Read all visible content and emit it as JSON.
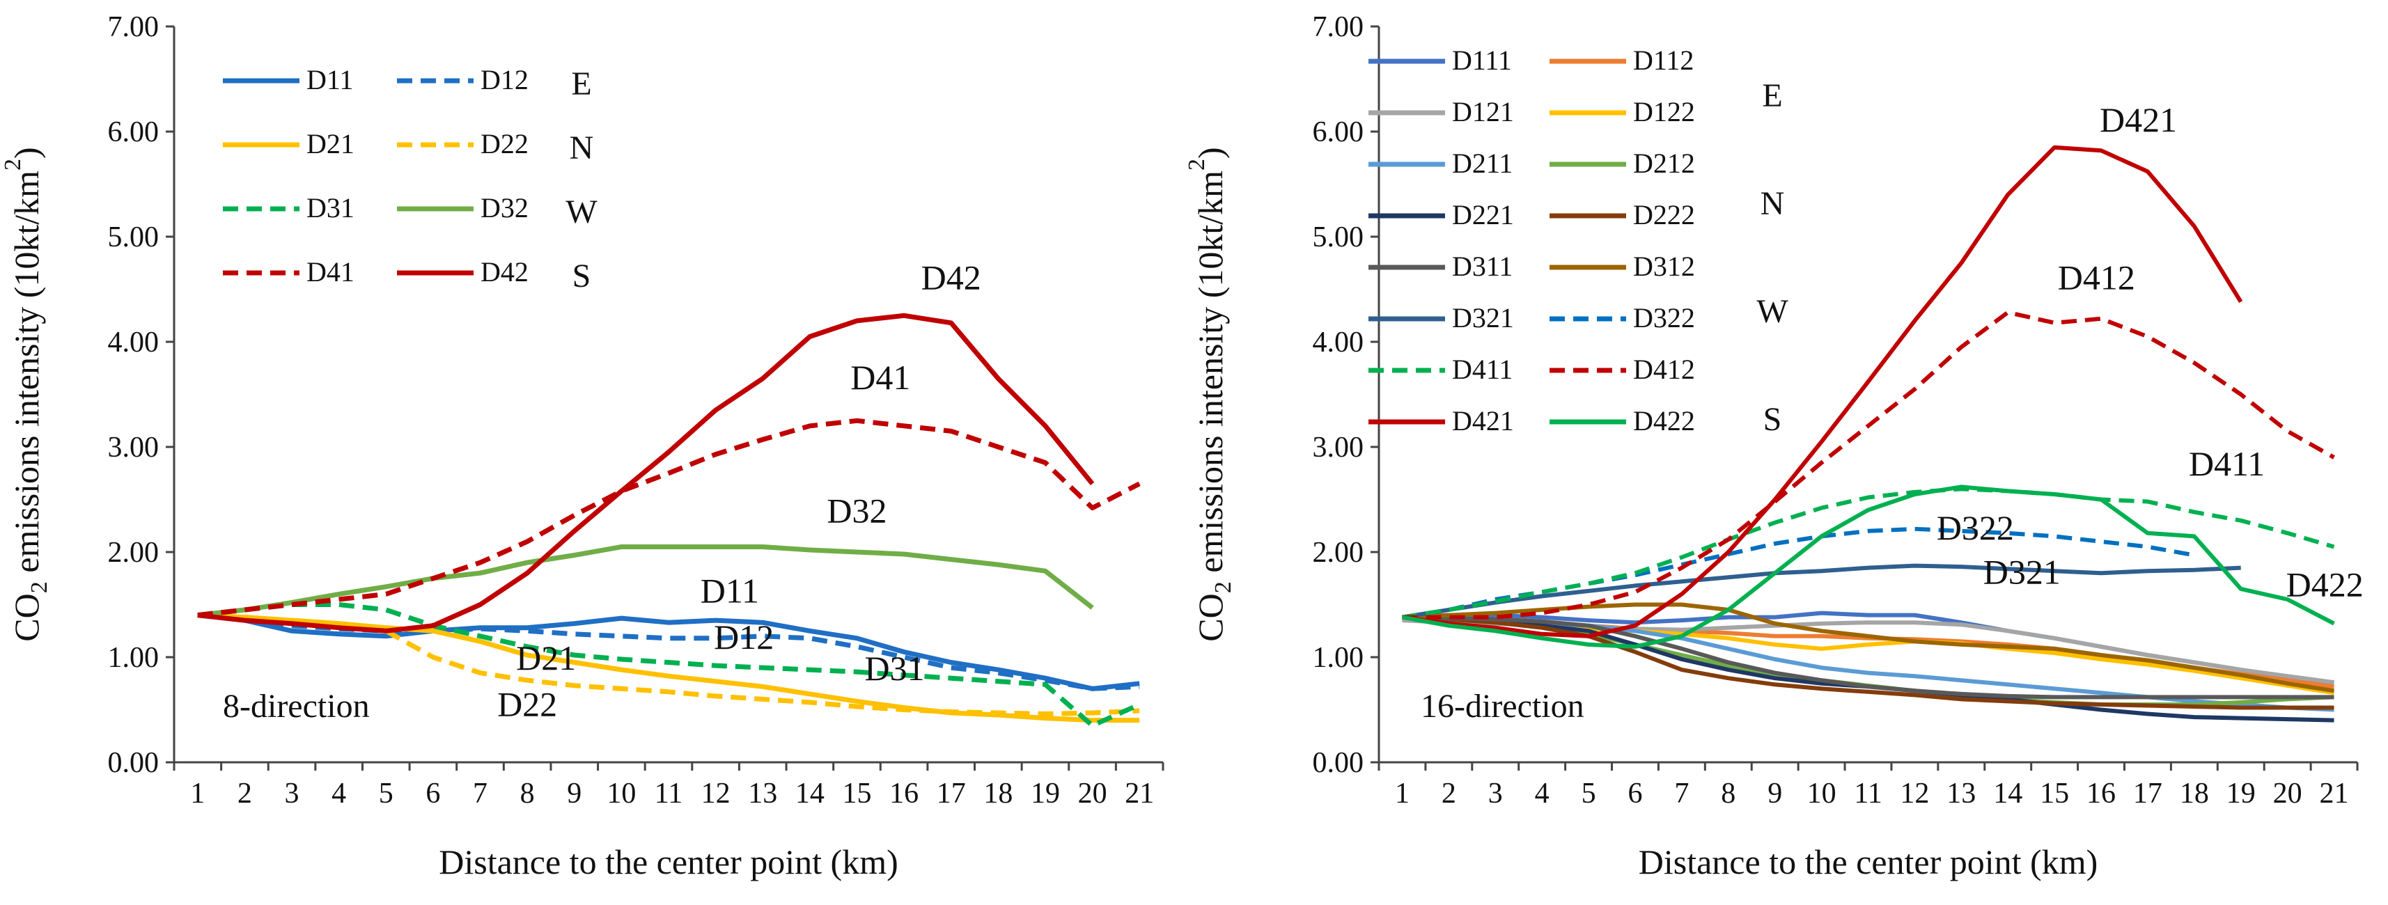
{
  "charts": [
    {
      "chart_data": {
        "type": "line",
        "title": "",
        "corner_label": "8-direction",
        "xlabel": "Distance to the center point (km)",
        "ylabel_pre": "CO",
        "ylabel_sub": "2",
        "ylabel_post": " emissions intensity (10kt/km",
        "ylabel_sup": "2",
        "ylabel_end": ")",
        "x": [
          1,
          2,
          3,
          4,
          5,
          6,
          7,
          8,
          9,
          10,
          11,
          12,
          13,
          14,
          15,
          16,
          17,
          18,
          19,
          20,
          21
        ],
        "ylim": [
          0,
          7
        ],
        "ytick_labels": [
          "0.00",
          "1.00",
          "2.00",
          "3.00",
          "4.00",
          "5.00",
          "6.00",
          "7.00"
        ],
        "xtick_labels": [
          "1",
          "2",
          "3",
          "4",
          "5",
          "6",
          "7",
          "8",
          "9",
          "10",
          "11",
          "12",
          "13",
          "14",
          "15",
          "16",
          "17",
          "18",
          "19",
          "20",
          "21"
        ],
        "legend": {
          "placement": "top-left",
          "columns": 2,
          "direction_labels": [
            "E",
            "N",
            "W",
            "S"
          ]
        },
        "series": [
          {
            "name": "D11",
            "color": "#1f6fc4",
            "dash": false,
            "values": [
              1.4,
              1.35,
              1.25,
              1.22,
              1.2,
              1.25,
              1.28,
              1.28,
              1.32,
              1.37,
              1.33,
              1.35,
              1.33,
              1.25,
              1.18,
              1.05,
              0.95,
              0.88,
              0.8,
              0.7,
              0.75
            ]
          },
          {
            "name": "D12",
            "color": "#1f6fc4",
            "dash": true,
            "values": [
              1.4,
              1.35,
              1.3,
              1.27,
              1.25,
              1.25,
              1.27,
              1.25,
              1.22,
              1.2,
              1.18,
              1.18,
              1.2,
              1.18,
              1.1,
              1.0,
              0.9,
              0.85,
              0.78,
              0.7,
              0.72
            ]
          },
          {
            "name": "D21",
            "color": "#ffc000",
            "dash": false,
            "values": [
              1.4,
              1.38,
              1.35,
              1.32,
              1.28,
              1.25,
              1.15,
              1.02,
              0.95,
              0.88,
              0.82,
              0.77,
              0.72,
              0.65,
              0.58,
              0.52,
              0.47,
              0.45,
              0.42,
              0.4,
              0.4
            ]
          },
          {
            "name": "D22",
            "color": "#ffc000",
            "dash": true,
            "values": [
              1.4,
              1.38,
              1.35,
              1.32,
              1.25,
              1.0,
              0.85,
              0.78,
              0.73,
              0.7,
              0.67,
              0.63,
              0.6,
              0.57,
              0.53,
              0.5,
              0.48,
              0.47,
              0.46,
              0.47,
              0.49
            ]
          },
          {
            "name": "D31",
            "color": "#00b050",
            "dash": true,
            "values": [
              1.4,
              1.45,
              1.5,
              1.5,
              1.45,
              1.3,
              1.2,
              1.1,
              1.02,
              0.98,
              0.95,
              0.92,
              0.9,
              0.88,
              0.86,
              0.83,
              0.8,
              0.77,
              0.74,
              0.35,
              0.55
            ]
          },
          {
            "name": "D32",
            "color": "#70ad47",
            "dash": false,
            "values": [
              1.4,
              1.45,
              1.52,
              1.6,
              1.67,
              1.75,
              1.8,
              1.9,
              1.97,
              2.05,
              2.05,
              2.05,
              2.05,
              2.02,
              2.0,
              1.98,
              1.93,
              1.88,
              1.82,
              1.47,
              null
            ]
          },
          {
            "name": "D41",
            "color": "#c00000",
            "dash": true,
            "values": [
              1.4,
              1.45,
              1.5,
              1.55,
              1.6,
              1.75,
              1.9,
              2.1,
              2.35,
              2.58,
              2.75,
              2.93,
              3.07,
              3.2,
              3.25,
              3.2,
              3.15,
              3.0,
              2.85,
              2.42,
              2.65
            ]
          },
          {
            "name": "D42",
            "color": "#c00000",
            "dash": false,
            "values": [
              1.4,
              1.35,
              1.32,
              1.28,
              1.25,
              1.3,
              1.5,
              1.8,
              2.2,
              2.58,
              2.95,
              3.35,
              3.65,
              4.05,
              4.2,
              4.25,
              4.18,
              3.65,
              3.2,
              2.65,
              null
            ]
          }
        ],
        "annotations": [
          {
            "text": "D42",
            "x": 17.0,
            "y": 4.5
          },
          {
            "text": "D41",
            "x": 15.5,
            "y": 3.55
          },
          {
            "text": "D32",
            "x": 15.0,
            "y": 2.28
          },
          {
            "text": "D11",
            "x": 12.3,
            "y": 1.52
          },
          {
            "text": "D12",
            "x": 12.6,
            "y": 1.08
          },
          {
            "text": "D21",
            "x": 8.4,
            "y": 0.88
          },
          {
            "text": "D31",
            "x": 15.8,
            "y": 0.78
          },
          {
            "text": "D22",
            "x": 8.0,
            "y": 0.44
          }
        ]
      }
    },
    {
      "chart_data": {
        "type": "line",
        "title": "",
        "corner_label": "16-direction",
        "xlabel": "Distance to the center point (km)",
        "ylabel_pre": "CO",
        "ylabel_sub": "2",
        "ylabel_post": " emissions intensity (10kt/km",
        "ylabel_sup": "2",
        "ylabel_end": ")",
        "x": [
          1,
          2,
          3,
          4,
          5,
          6,
          7,
          8,
          9,
          10,
          11,
          12,
          13,
          14,
          15,
          16,
          17,
          18,
          19,
          20,
          21
        ],
        "ylim": [
          0,
          7
        ],
        "ytick_labels": [
          "0.00",
          "1.00",
          "2.00",
          "3.00",
          "4.00",
          "5.00",
          "6.00",
          "7.00"
        ],
        "xtick_labels": [
          "1",
          "2",
          "3",
          "4",
          "5",
          "6",
          "7",
          "8",
          "9",
          "10",
          "11",
          "12",
          "13",
          "14",
          "15",
          "16",
          "17",
          "18",
          "19",
          "20",
          "21"
        ],
        "legend": {
          "placement": "top-left",
          "columns": 2,
          "direction_labels": [
            "E",
            "N",
            "W",
            "S"
          ]
        },
        "series": [
          {
            "name": "D111",
            "color": "#4472c4",
            "dash": false,
            "values": [
              1.38,
              1.4,
              1.4,
              1.38,
              1.35,
              1.33,
              1.35,
              1.38,
              1.38,
              1.42,
              1.4,
              1.4,
              1.33,
              1.25,
              1.18,
              1.1,
              1.02,
              0.95,
              0.88,
              0.8,
              0.76
            ]
          },
          {
            "name": "D112",
            "color": "#ed7d31",
            "dash": false,
            "values": [
              1.38,
              1.37,
              1.36,
              1.34,
              1.3,
              1.27,
              1.25,
              1.23,
              1.2,
              1.2,
              1.18,
              1.17,
              1.15,
              1.12,
              1.08,
              1.02,
              0.96,
              0.9,
              0.84,
              0.78,
              0.72
            ]
          },
          {
            "name": "D121",
            "color": "#a5a5a5",
            "dash": false,
            "values": [
              1.35,
              1.33,
              1.32,
              1.3,
              1.28,
              1.27,
              1.26,
              1.28,
              1.3,
              1.32,
              1.33,
              1.33,
              1.31,
              1.25,
              1.18,
              1.1,
              1.02,
              0.95,
              0.88,
              0.82,
              0.76
            ]
          },
          {
            "name": "D122",
            "color": "#ffc000",
            "dash": false,
            "values": [
              1.38,
              1.36,
              1.33,
              1.3,
              1.27,
              1.25,
              1.22,
              1.18,
              1.12,
              1.08,
              1.12,
              1.15,
              1.13,
              1.08,
              1.04,
              0.98,
              0.93,
              0.87,
              0.8,
              0.73,
              0.66
            ]
          },
          {
            "name": "D211",
            "color": "#5b9bd5",
            "dash": false,
            "values": [
              1.38,
              1.36,
              1.34,
              1.32,
              1.3,
              1.25,
              1.18,
              1.08,
              0.98,
              0.9,
              0.85,
              0.82,
              0.78,
              0.74,
              0.7,
              0.66,
              0.62,
              0.58,
              0.55,
              0.52,
              0.5
            ]
          },
          {
            "name": "D212",
            "color": "#70ad47",
            "dash": false,
            "values": [
              1.38,
              1.36,
              1.33,
              1.28,
              1.22,
              1.12,
              1.02,
              0.92,
              0.84,
              0.78,
              0.73,
              0.68,
              0.64,
              0.6,
              0.57,
              0.55,
              0.55,
              0.55,
              0.57,
              0.6,
              0.62
            ]
          },
          {
            "name": "D221",
            "color": "#1f3864",
            "dash": false,
            "values": [
              1.38,
              1.36,
              1.34,
              1.3,
              1.25,
              1.12,
              0.98,
              0.88,
              0.8,
              0.75,
              0.72,
              0.68,
              0.64,
              0.6,
              0.55,
              0.5,
              0.46,
              0.43,
              0.42,
              0.41,
              0.4
            ]
          },
          {
            "name": "D222",
            "color": "#843c0c",
            "dash": false,
            "values": [
              1.38,
              1.36,
              1.33,
              1.28,
              1.2,
              1.05,
              0.88,
              0.8,
              0.74,
              0.7,
              0.67,
              0.64,
              0.6,
              0.58,
              0.56,
              0.55,
              0.54,
              0.53,
              0.52,
              0.52,
              0.52
            ]
          },
          {
            "name": "D311",
            "color": "#595959",
            "dash": false,
            "values": [
              1.38,
              1.37,
              1.36,
              1.34,
              1.3,
              1.2,
              1.08,
              0.95,
              0.85,
              0.78,
              0.72,
              0.68,
              0.65,
              0.63,
              0.62,
              0.62,
              0.62,
              0.62,
              0.62,
              0.62,
              0.62
            ]
          },
          {
            "name": "D312",
            "color": "#9c6500",
            "dash": false,
            "values": [
              1.38,
              1.4,
              1.42,
              1.45,
              1.48,
              1.5,
              1.5,
              1.45,
              1.32,
              1.25,
              1.2,
              1.15,
              1.12,
              1.1,
              1.08,
              1.02,
              0.97,
              0.9,
              0.83,
              0.75,
              0.68
            ]
          },
          {
            "name": "D321",
            "color": "#2e5f8f",
            "dash": false,
            "values": [
              1.38,
              1.45,
              1.52,
              1.58,
              1.63,
              1.68,
              1.72,
              1.76,
              1.8,
              1.82,
              1.85,
              1.87,
              1.86,
              1.84,
              1.82,
              1.8,
              1.82,
              1.83,
              1.85,
              null,
              null
            ]
          },
          {
            "name": "D322",
            "color": "#0070c0",
            "dash": true,
            "values": [
              1.38,
              1.45,
              1.55,
              1.62,
              1.7,
              1.78,
              1.88,
              1.98,
              2.08,
              2.15,
              2.2,
              2.22,
              2.2,
              2.18,
              2.15,
              2.1,
              2.05,
              1.97,
              null,
              null,
              null
            ]
          },
          {
            "name": "D411",
            "color": "#00b050",
            "dash": true,
            "values": [
              1.38,
              1.45,
              1.53,
              1.62,
              1.7,
              1.8,
              1.95,
              2.12,
              2.28,
              2.42,
              2.52,
              2.57,
              2.6,
              2.58,
              2.55,
              2.5,
              2.48,
              2.38,
              2.3,
              2.18,
              2.05
            ]
          },
          {
            "name": "D412",
            "color": "#c00000",
            "dash": true,
            "values": [
              1.38,
              1.38,
              1.38,
              1.42,
              1.5,
              1.62,
              1.85,
              2.12,
              2.48,
              2.85,
              3.2,
              3.55,
              3.95,
              4.28,
              4.18,
              4.22,
              4.05,
              3.8,
              3.5,
              3.15,
              2.9
            ]
          },
          {
            "name": "D421",
            "color": "#c00000",
            "dash": false,
            "values": [
              1.38,
              1.32,
              1.28,
              1.22,
              1.2,
              1.3,
              1.6,
              2.0,
              2.5,
              3.05,
              3.62,
              4.2,
              4.75,
              5.4,
              5.85,
              5.82,
              5.62,
              5.1,
              4.38,
              null,
              null
            ]
          },
          {
            "name": "D422",
            "color": "#00b050",
            "dash": false,
            "values": [
              1.38,
              1.3,
              1.25,
              1.18,
              1.12,
              1.1,
              1.2,
              1.45,
              1.8,
              2.15,
              2.4,
              2.55,
              2.62,
              2.58,
              2.55,
              2.5,
              2.18,
              2.15,
              1.65,
              1.55,
              1.32
            ]
          }
        ],
        "annotations": [
          {
            "text": "D421",
            "x": 16.8,
            "y": 6.0
          },
          {
            "text": "D412",
            "x": 15.9,
            "y": 4.5
          },
          {
            "text": "D411",
            "x": 18.7,
            "y": 2.73
          },
          {
            "text": "D322",
            "x": 13.3,
            "y": 2.12
          },
          {
            "text": "D321",
            "x": 14.3,
            "y": 1.7
          },
          {
            "text": "D422",
            "x": 20.8,
            "y": 1.58
          }
        ]
      }
    }
  ]
}
